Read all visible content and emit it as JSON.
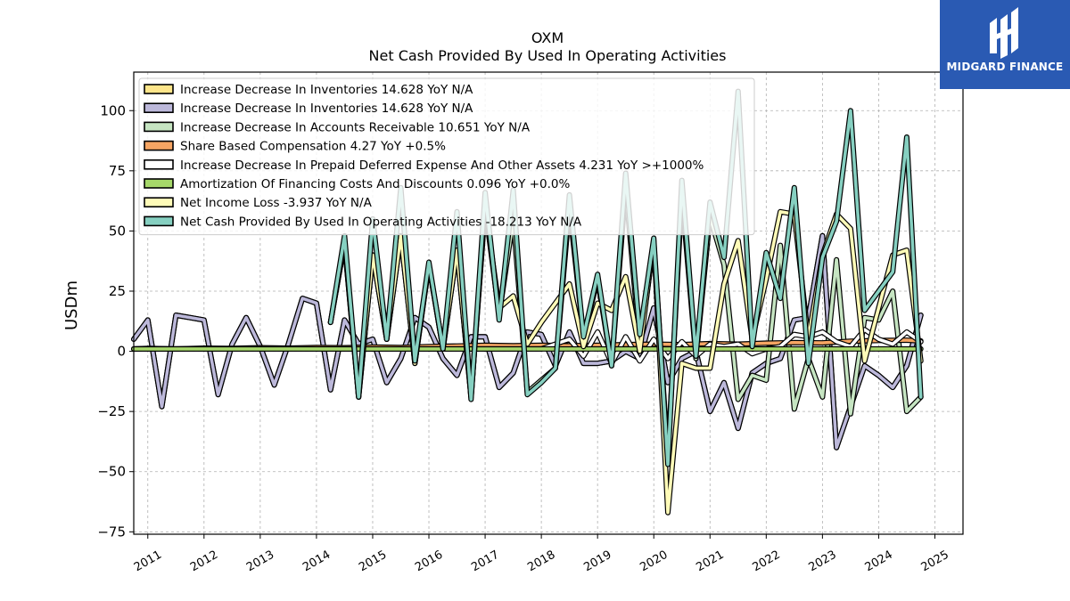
{
  "chart_data": {
    "type": "line",
    "title": "OXM",
    "subtitle": "Net Cash Provided By Used In Operating Activities",
    "ylabel": "USDm",
    "xlabel": "",
    "ylim": [
      -76,
      116
    ],
    "xlim": [
      2010.75,
      2025.5
    ],
    "yticks": [
      -75,
      -50,
      -25,
      0,
      25,
      50,
      75,
      100
    ],
    "xticks": [
      "2011",
      "2012",
      "2013",
      "2014",
      "2015",
      "2016",
      "2017",
      "2018",
      "2019",
      "2020",
      "2021",
      "2022",
      "2023",
      "2024",
      "2025"
    ],
    "grid": true,
    "legend_position": "top-left",
    "series": [
      {
        "name": "Increase Decrease In Inventories  14.628 YoY N/A",
        "color": "#fde58a",
        "x": [
          2010.75,
          2011.0,
          2011.25,
          2011.5,
          2011.75,
          2012.0,
          2012.25,
          2012.5,
          2012.75,
          2013.0,
          2013.25,
          2013.5,
          2013.75,
          2014.0,
          2014.25,
          2014.5,
          2014.75,
          2015.0,
          2015.25,
          2015.5,
          2015.75,
          2016.0,
          2016.25,
          2016.5,
          2016.75,
          2017.0,
          2017.25,
          2017.5,
          2017.75,
          2018.0,
          2018.25,
          2018.5,
          2018.75,
          2019.0,
          2019.25,
          2019.5,
          2019.75,
          2020.0,
          2020.25,
          2020.5,
          2020.75,
          2021.0,
          2021.25,
          2021.5,
          2021.75,
          2022.0,
          2022.25,
          2022.5,
          2022.75,
          2023.0,
          2023.25,
          2023.5,
          2023.75,
          2024.0,
          2024.25,
          2024.5,
          2024.75
        ],
        "values": [
          5,
          13,
          -23,
          15,
          14,
          13,
          -18,
          3,
          14,
          2,
          -14,
          3,
          22,
          20,
          -16,
          13,
          3,
          5,
          -13,
          -3,
          14,
          10,
          -3,
          -10,
          6,
          6,
          -15,
          -9,
          8,
          7,
          -6,
          8,
          -5,
          -5,
          -4,
          0,
          -3,
          18,
          -13,
          -3,
          0,
          -25,
          -13,
          -32,
          -9,
          -5,
          -3,
          13,
          14,
          48,
          -40,
          -23,
          -6,
          -10,
          -15,
          -6,
          15
        ]
      },
      {
        "name": "Increase Decrease In Inventories  14.628 YoY N/A",
        "color": "#bcb8da",
        "x": [
          2010.75,
          2011.0,
          2011.25,
          2011.5,
          2011.75,
          2012.0,
          2012.25,
          2012.5,
          2012.75,
          2013.0,
          2013.25,
          2013.5,
          2013.75,
          2014.0,
          2014.25,
          2014.5,
          2014.75,
          2015.0,
          2015.25,
          2015.5,
          2015.75,
          2016.0,
          2016.25,
          2016.5,
          2016.75,
          2017.0,
          2017.25,
          2017.5,
          2017.75,
          2018.0,
          2018.25,
          2018.5,
          2018.75,
          2019.0,
          2019.25,
          2019.5,
          2019.75,
          2020.0,
          2020.25,
          2020.5,
          2020.75,
          2021.0,
          2021.25,
          2021.5,
          2021.75,
          2022.0,
          2022.25,
          2022.5,
          2022.75,
          2023.0,
          2023.25,
          2023.5,
          2023.75,
          2024.0,
          2024.25,
          2024.5,
          2024.75
        ],
        "values": [
          5,
          13,
          -23,
          15,
          14,
          13,
          -18,
          3,
          14,
          2,
          -14,
          3,
          22,
          20,
          -16,
          13,
          3,
          5,
          -13,
          -3,
          14,
          10,
          -3,
          -10,
          6,
          6,
          -15,
          -9,
          8,
          7,
          -6,
          8,
          -5,
          -5,
          -4,
          0,
          -3,
          18,
          -13,
          -3,
          0,
          -25,
          -13,
          -32,
          -9,
          -5,
          -3,
          13,
          14,
          48,
          -40,
          -23,
          -6,
          -10,
          -15,
          -6,
          15
        ]
      },
      {
        "name": "Increase Decrease In Accounts Receivable  10.651 YoY N/A",
        "color": "#c6e5c2",
        "x": [
          2014.25,
          2014.5,
          2014.75,
          2015.0,
          2015.25,
          2015.5,
          2015.75,
          2016.0,
          2016.25,
          2016.5,
          2016.75,
          2017.0,
          2017.25,
          2017.5,
          2017.75,
          2018.0,
          2018.25,
          2018.5,
          2018.75,
          2019.0,
          2019.25,
          2019.5,
          2019.75,
          2020.0,
          2020.25,
          2020.5,
          2020.75,
          2021.0,
          2021.25,
          2021.5,
          2021.75,
          2022.0,
          2022.25,
          2022.5,
          2022.75,
          2023.0,
          2023.25,
          2023.5,
          2023.75,
          2024.0,
          2024.25,
          2024.5,
          2024.75
        ],
        "values": [
          12,
          45,
          -19,
          40,
          5,
          48,
          -5,
          36,
          1,
          42,
          -19,
          60,
          15,
          55,
          -17,
          -12,
          -7,
          60,
          6,
          30,
          -6,
          68,
          2,
          45,
          -44,
          65,
          -3,
          56,
          36,
          -20,
          -10,
          -12,
          44,
          -24,
          -3,
          -19,
          38,
          -26,
          14,
          13,
          25,
          -25,
          -19
        ]
      },
      {
        "name": "Share Based Compensation  4.27 YoY +0.5%",
        "color": "#f6a563",
        "x": [
          2010.75,
          2011.0,
          2011.5,
          2012.0,
          2012.5,
          2013.0,
          2013.5,
          2014.0,
          2014.5,
          2015.0,
          2015.5,
          2016.0,
          2016.5,
          2017.0,
          2017.5,
          2018.0,
          2018.5,
          2019.0,
          2019.5,
          2020.0,
          2020.5,
          2021.0,
          2021.5,
          2022.0,
          2022.5,
          2023.0,
          2023.5,
          2024.0,
          2024.5,
          2024.75
        ],
        "values": [
          1,
          1.2,
          1,
          1.3,
          1.2,
          1.5,
          1.3,
          1.6,
          1.5,
          1.8,
          1.6,
          2.0,
          2.2,
          2.5,
          2.3,
          2.5,
          2.3,
          2.5,
          2.8,
          3.0,
          2.8,
          3.2,
          3.0,
          3.4,
          3.6,
          3.5,
          4.2,
          4.5,
          4.6,
          4.3
        ]
      },
      {
        "name": "Increase Decrease In Prepaid Deferred Expense And Other Assets  4.231 YoY >+1000%",
        "color": "#ffffff",
        "x": [
          2010.75,
          2011.5,
          2012.5,
          2013.5,
          2014.5,
          2015.0,
          2015.5,
          2016.0,
          2016.5,
          2017.0,
          2017.5,
          2018.0,
          2018.5,
          2018.75,
          2019.0,
          2019.25,
          2019.5,
          2019.75,
          2020.0,
          2020.25,
          2020.5,
          2020.75,
          2021.0,
          2021.25,
          2021.5,
          2021.75,
          2022.0,
          2022.25,
          2022.5,
          2022.75,
          2023.0,
          2023.25,
          2023.5,
          2023.75,
          2024.0,
          2024.25,
          2024.5,
          2024.75
        ],
        "values": [
          1,
          1,
          1,
          1,
          1,
          1,
          1,
          1,
          1,
          1,
          1,
          1,
          5,
          -2,
          8,
          -5,
          6,
          -4,
          5,
          -3,
          4,
          -2,
          3,
          2,
          3,
          -1,
          1,
          2,
          7,
          6,
          8,
          4,
          2,
          9,
          5,
          3,
          8,
          4
        ]
      },
      {
        "name": "Amortization Of Financing Costs And Discounts  0.096 YoY +0.0%",
        "color": "#a6d86a",
        "x": [
          2010.75,
          2024.75
        ],
        "values": [
          1,
          1
        ]
      },
      {
        "name": "Net Income Loss  -3.937 YoY N/A",
        "color": "#fffbb8",
        "x": [
          2014.25,
          2014.5,
          2014.75,
          2015.0,
          2015.25,
          2015.5,
          2015.75,
          2016.0,
          2016.25,
          2016.5,
          2016.75,
          2017.0,
          2017.25,
          2017.5,
          2017.75,
          2018.0,
          2018.25,
          2018.5,
          2018.75,
          2019.0,
          2019.25,
          2019.5,
          2019.75,
          2020.0,
          2020.25,
          2020.5,
          2020.75,
          2021.0,
          2021.25,
          2021.5,
          2021.75,
          2022.0,
          2022.25,
          2022.5,
          2022.75,
          2023.0,
          2023.25,
          2023.5,
          2023.75,
          2024.0,
          2024.25,
          2024.5,
          2024.75
        ],
        "values": [
          12,
          45,
          -19,
          40,
          5,
          48,
          -5,
          36,
          1,
          42,
          -19,
          60,
          18,
          23,
          3,
          12,
          20,
          28,
          2,
          20,
          17,
          31,
          0,
          46,
          -67,
          -5,
          -7,
          -7,
          28,
          46,
          5,
          30,
          58,
          57,
          5,
          40,
          57,
          51,
          -4,
          18,
          40,
          42,
          -4
        ]
      },
      {
        "name": "Net Cash Provided By Used In Operating Activities  -18.213 YoY N/A",
        "color": "#86d0c1",
        "x": [
          2014.25,
          2014.5,
          2014.75,
          2015.0,
          2015.25,
          2015.5,
          2015.75,
          2016.0,
          2016.25,
          2016.5,
          2016.75,
          2017.0,
          2017.25,
          2017.5,
          2017.75,
          2018.0,
          2018.25,
          2018.5,
          2018.75,
          2019.0,
          2019.25,
          2019.5,
          2019.75,
          2020.0,
          2020.25,
          2020.5,
          2020.75,
          2021.0,
          2021.25,
          2021.5,
          2021.75,
          2022.0,
          2022.25,
          2022.5,
          2022.75,
          2023.0,
          2023.25,
          2023.5,
          2023.75,
          2024.0,
          2024.25,
          2024.5,
          2024.75
        ],
        "values": [
          12,
          48,
          -19,
          55,
          5,
          68,
          -4,
          37,
          1,
          58,
          -20,
          66,
          13,
          67,
          -18,
          -13,
          -7,
          65,
          6,
          32,
          -6,
          74,
          7,
          47,
          -47,
          71,
          -2,
          62,
          39,
          108,
          2,
          41,
          22,
          68,
          -5,
          39,
          54,
          100,
          17,
          25,
          33,
          89,
          -19
        ]
      }
    ]
  },
  "logo": {
    "text": "MIDGARD FINANCE",
    "color": "#2a5ab3"
  }
}
